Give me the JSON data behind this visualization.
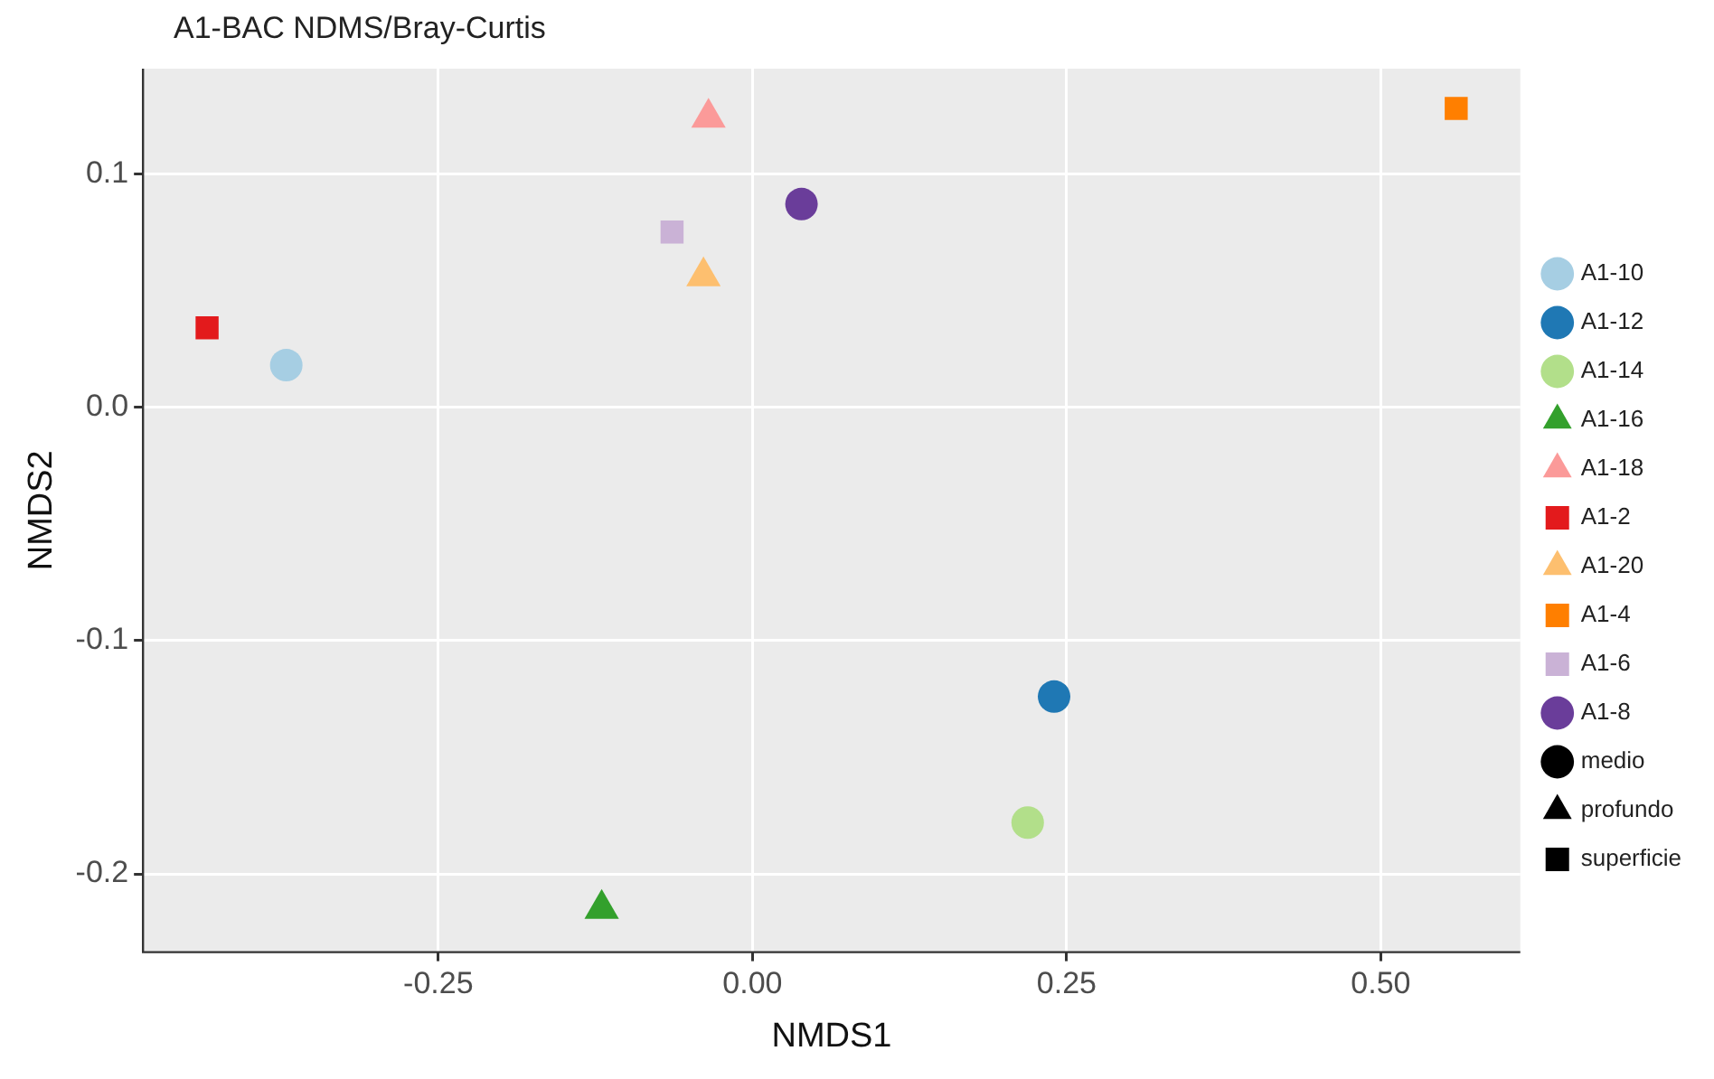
{
  "chart_data": {
    "type": "scatter",
    "title": "A1-BAC NDMS/Bray-Curtis",
    "xlabel": "NMDS1",
    "ylabel": "NMDS2",
    "xlim": [
      -0.485,
      0.611
    ],
    "ylim": [
      -0.2335,
      0.145
    ],
    "xticks": [
      {
        "value": -0.25,
        "label": "-0.25"
      },
      {
        "value": 0,
        "label": "0.00"
      },
      {
        "value": 0.25,
        "label": "0.25"
      },
      {
        "value": 0.5,
        "label": "0.50"
      }
    ],
    "yticks": [
      {
        "value": -0.2,
        "label": "-0.2"
      },
      {
        "value": -0.1,
        "label": "-0.1"
      },
      {
        "value": 0,
        "label": "0.0"
      },
      {
        "value": 0.1,
        "label": "0.1"
      }
    ],
    "grid": true,
    "legend": "right",
    "series": [
      {
        "name": "A1-10",
        "color": "#a6cee3",
        "marker": "circle",
        "x": [
          -0.371
        ],
        "values": [
          0.018
        ]
      },
      {
        "name": "A1-12",
        "color": "#1f78b4",
        "marker": "circle",
        "x": [
          0.24
        ],
        "values": [
          -0.124
        ]
      },
      {
        "name": "A1-14",
        "color": "#b2df8a",
        "marker": "circle",
        "x": [
          0.219
        ],
        "values": [
          -0.178
        ]
      },
      {
        "name": "A1-16",
        "color": "#33a02c",
        "marker": "triangle",
        "x": [
          -0.12
        ],
        "values": [
          -0.215
        ]
      },
      {
        "name": "A1-18",
        "color": "#fb9a99",
        "marker": "triangle",
        "x": [
          -0.035
        ],
        "values": [
          0.124
        ]
      },
      {
        "name": "A1-2",
        "color": "#e31a1c",
        "marker": "square",
        "x": [
          -0.434
        ],
        "values": [
          0.034
        ]
      },
      {
        "name": "A1-20",
        "color": "#fdbf6f",
        "marker": "triangle",
        "x": [
          -0.039
        ],
        "values": [
          0.056
        ]
      },
      {
        "name": "A1-4",
        "color": "#ff7f00",
        "marker": "square",
        "x": [
          0.56
        ],
        "values": [
          0.128
        ]
      },
      {
        "name": "A1-6",
        "color": "#cab2d6",
        "marker": "square",
        "x": [
          -0.064
        ],
        "values": [
          0.075
        ]
      },
      {
        "name": "A1-8",
        "color": "#6a3d9a",
        "marker": "circle",
        "x": [
          0.039
        ],
        "values": [
          0.087
        ]
      },
      {
        "name": "medio",
        "color": "#000000",
        "marker": "circle"
      },
      {
        "name": "profundo",
        "color": "#000000",
        "marker": "triangle"
      },
      {
        "name": "superficie",
        "color": "#000000",
        "marker": "square"
      }
    ]
  }
}
